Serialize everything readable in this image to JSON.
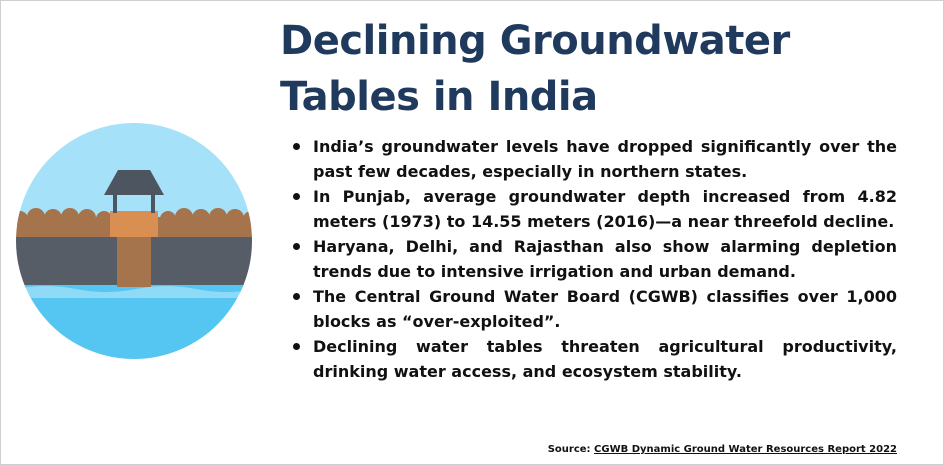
{
  "title": "Declining Groundwater Tables in India",
  "bullets": [
    "India’s groundwater levels have dropped significantly over the past few decades, especially in northern states.",
    "In Punjab, average groundwater depth increased from 4.82 meters (1973) to 14.55 meters (2016)—a near threefold decline.",
    "Haryana, Delhi, and Rajasthan also show alarming depletion trends due to intensive irrigation and urban demand.",
    "The Central Ground Water Board (CGWB) classifies over 1,000 blocks as “over-exploited”.",
    "Declining water tables threaten agricultural productivity, drinking water access, and ecosystem stability."
  ],
  "source": {
    "label": "Source:",
    "link_text": "CGWB Dynamic Ground Water Resources Report 2022"
  },
  "illustration": {
    "icon": "well-groundwater-icon",
    "colors": {
      "sky": "#a5e1f9",
      "soil": "#a6744c",
      "rock": "#565d66",
      "water": "#54c6f1",
      "roof": "#4c5560",
      "well": "#d98e52"
    }
  }
}
